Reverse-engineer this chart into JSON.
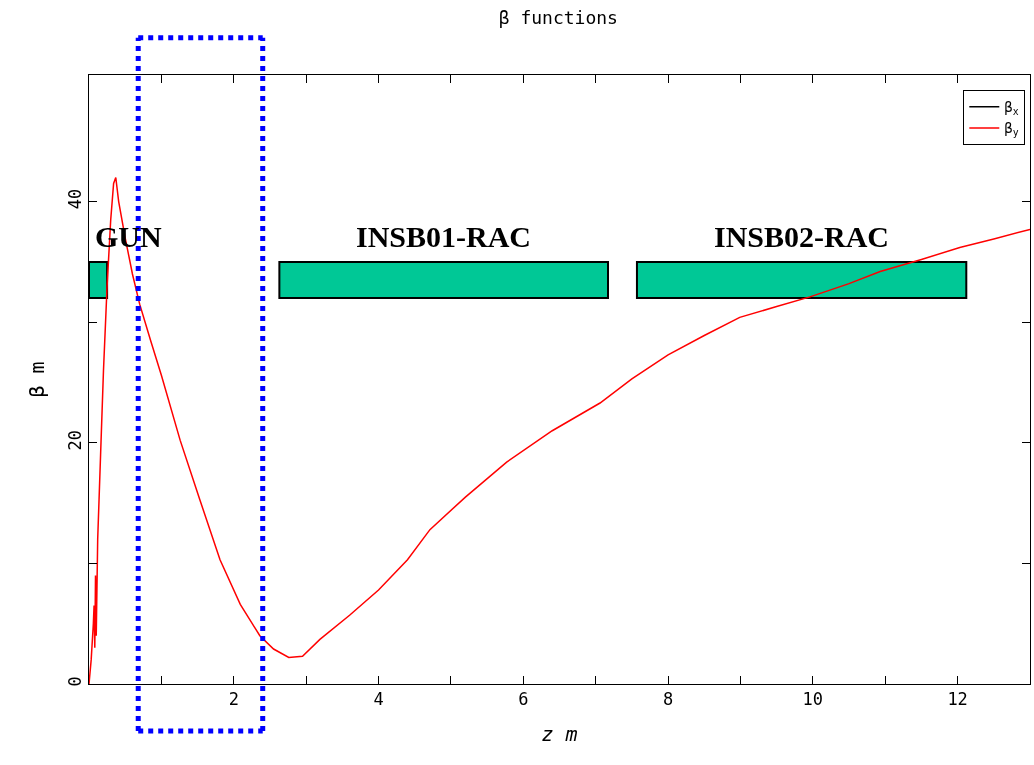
{
  "chart_data": {
    "type": "line",
    "title": "β functions",
    "xlabel": "z m",
    "ylabel": "β m",
    "x": [
      0,
      0.03,
      0.06,
      0.07,
      0.08,
      0.09,
      0.1,
      0.12,
      0.16,
      0.2,
      0.25,
      0.3,
      0.34,
      0.37,
      0.41,
      0.5,
      0.6,
      0.7,
      0.85,
      1.0,
      1.26,
      1.53,
      1.81,
      2.09,
      2.36,
      2.55,
      2.76,
      2.95,
      3.19,
      3.6,
      4.0,
      4.4,
      4.71,
      5.2,
      5.77,
      6.4,
      7.06,
      7.5,
      8.0,
      8.5,
      8.99,
      9.5,
      9.96,
      10.5,
      10.93,
      11.5,
      12.03,
      12.5,
      13.0
    ],
    "series": [
      {
        "name": "β$_{x}$",
        "color": "#000000",
        "values": [
          null,
          null,
          null,
          null,
          null,
          null,
          null,
          null,
          null,
          null,
          null,
          null,
          null,
          null,
          null,
          null,
          null,
          null,
          null,
          null,
          null,
          null,
          null,
          null,
          null,
          null,
          null,
          null,
          null,
          null,
          null,
          null,
          null,
          null,
          null,
          null,
          null,
          null,
          null,
          null,
          null,
          null,
          null,
          null,
          null,
          null,
          null,
          null,
          null
        ]
      },
      {
        "name": "β$_{y}$",
        "color": "#ff0000",
        "values": [
          0,
          2,
          5,
          6.5,
          3,
          9,
          4,
          12,
          19,
          26,
          33,
          38.5,
          41.5,
          42,
          40,
          37,
          34,
          31.5,
          28.5,
          25.6,
          20.2,
          15.3,
          10.3,
          6.6,
          4.0,
          2.9,
          2.2,
          2.3,
          3.7,
          5.7,
          7.8,
          10.3,
          12.8,
          15.5,
          18.4,
          21.0,
          23.3,
          25.3,
          27.3,
          28.9,
          30.4,
          31.3,
          32.1,
          33.2,
          34.2,
          35.2,
          36.2,
          36.9,
          37.7
        ]
      }
    ],
    "xlim": [
      0,
      13
    ],
    "ylim": [
      0,
      50.5
    ],
    "xticks": [
      {
        "value": 1,
        "label": null
      },
      2,
      {
        "value": 3,
        "label": null
      },
      4,
      {
        "value": 5,
        "label": null
      },
      6,
      {
        "value": 7,
        "label": null
      },
      8,
      {
        "value": 9,
        "label": null
      },
      10,
      {
        "value": 11,
        "label": null
      },
      12
    ],
    "yticks": [
      0,
      {
        "value": 10,
        "label": null
      },
      20,
      {
        "value": 30,
        "label": null
      },
      40
    ],
    "bands": [
      {
        "axis": "x",
        "from": 0,
        "to": 0.25,
        "label": "GUN",
        "color": "#00c896"
      },
      {
        "axis": "x",
        "from": 2.63,
        "to": 7.17,
        "label": "INSB01-RAC",
        "color": "#00c896"
      },
      {
        "axis": "x",
        "from": 7.57,
        "to": 12.12,
        "label": "INSB02-RAC",
        "color": "#00c896"
      }
    ],
    "ref_lines": [
      {
        "axis": "x",
        "value": 0.68,
        "color": "#0000ff",
        "line_style": "dotted"
      },
      {
        "axis": "x",
        "value": 2.4,
        "color": "#0000ff",
        "line_style": "dotted"
      }
    ],
    "legend": "top right",
    "grid": false,
    "marker": "none",
    "line_style": "solid"
  }
}
